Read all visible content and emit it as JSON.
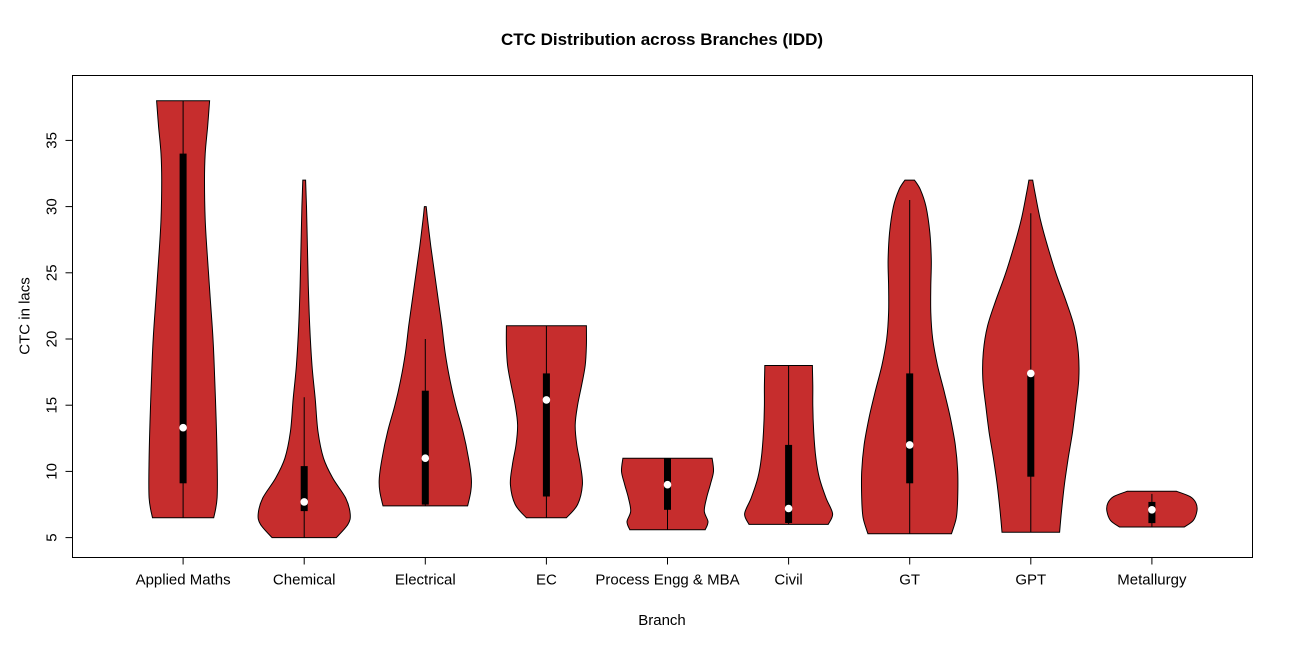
{
  "title": "CTC Distribution across Branches (IDD)",
  "y_axis_label": "CTC in lacs",
  "x_axis_label": "Branch",
  "colors": {
    "violin_fill": "#C62D2D",
    "violin_stroke": "#000000",
    "box": "#000000",
    "median_dot": "#FFFFFF",
    "axis": "#000000",
    "background": "#FFFFFF"
  },
  "chart_data": {
    "type": "violin",
    "title": "CTC Distribution across Branches (IDD)",
    "xlabel": "Branch",
    "ylabel": "CTC in lacs",
    "ylim": [
      3.5,
      39.9
    ],
    "y_ticks": [
      5,
      10,
      15,
      20,
      25,
      30,
      35
    ],
    "grid": false,
    "legend": "none",
    "categories": [
      "Applied Maths",
      "Chemical",
      "Electrical",
      "EC",
      "Process Engg & MBA",
      "Civil",
      "GT",
      "GPT",
      "Metallurgy"
    ],
    "series": [
      {
        "name": "Applied Maths",
        "range": [
          6.5,
          38
        ],
        "q1": 9.1,
        "q3": 34,
        "median": 13.3,
        "whisker_low": 6.5,
        "whisker_high": 38,
        "width_scale": 34,
        "density_profile": [
          [
            6.5,
            0.9
          ],
          [
            8,
            1.0
          ],
          [
            11,
            1.0
          ],
          [
            14,
            0.97
          ],
          [
            17,
            0.93
          ],
          [
            20,
            0.88
          ],
          [
            23,
            0.8
          ],
          [
            26,
            0.72
          ],
          [
            29,
            0.65
          ],
          [
            32,
            0.63
          ],
          [
            34,
            0.65
          ],
          [
            36,
            0.72
          ],
          [
            38,
            0.78
          ]
        ]
      },
      {
        "name": "Chemical",
        "range": [
          5,
          32
        ],
        "q1": 7.0,
        "q3": 10.4,
        "median": 7.7,
        "whisker_low": 5,
        "whisker_high": 15.6,
        "width_scale": 46,
        "density_profile": [
          [
            5,
            0.7
          ],
          [
            6,
            0.95
          ],
          [
            6.8,
            1.0
          ],
          [
            8,
            0.9
          ],
          [
            9.5,
            0.62
          ],
          [
            11,
            0.42
          ],
          [
            13,
            0.3
          ],
          [
            15.5,
            0.24
          ],
          [
            18,
            0.17
          ],
          [
            21,
            0.12
          ],
          [
            24,
            0.09
          ],
          [
            27,
            0.07
          ],
          [
            30,
            0.05
          ],
          [
            32,
            0.03
          ]
        ]
      },
      {
        "name": "Electrical",
        "range": [
          7.4,
          30
        ],
        "q1": 7.5,
        "q3": 16.1,
        "median": 11.0,
        "whisker_low": 7.4,
        "whisker_high": 20,
        "width_scale": 46,
        "density_profile": [
          [
            7.4,
            0.92
          ],
          [
            8.5,
            0.99
          ],
          [
            9.5,
            1.0
          ],
          [
            11,
            0.94
          ],
          [
            13,
            0.82
          ],
          [
            15,
            0.66
          ],
          [
            17,
            0.53
          ],
          [
            19,
            0.43
          ],
          [
            21,
            0.36
          ],
          [
            23,
            0.28
          ],
          [
            25,
            0.2
          ],
          [
            27,
            0.12
          ],
          [
            29,
            0.05
          ],
          [
            30,
            0.02
          ]
        ]
      },
      {
        "name": "EC",
        "range": [
          6.5,
          21
        ],
        "q1": 8.1,
        "q3": 17.4,
        "median": 15.4,
        "whisker_low": 6.5,
        "whisker_high": 21,
        "width_scale": 40,
        "density_profile": [
          [
            6.5,
            0.5
          ],
          [
            7.5,
            0.78
          ],
          [
            9,
            0.9
          ],
          [
            10.5,
            0.85
          ],
          [
            12,
            0.76
          ],
          [
            13.5,
            0.72
          ],
          [
            15,
            0.78
          ],
          [
            16.5,
            0.88
          ],
          [
            18,
            0.97
          ],
          [
            19.5,
            1.0
          ],
          [
            21,
            1.0
          ]
        ]
      },
      {
        "name": "Process Engg & MBA",
        "range": [
          5.6,
          11
        ],
        "q1": 7.1,
        "q3": 11.0,
        "median": 9.0,
        "whisker_low": 5.6,
        "whisker_high": 11,
        "width_scale": 46,
        "density_profile": [
          [
            5.6,
            0.82
          ],
          [
            6.2,
            0.88
          ],
          [
            7,
            0.8
          ],
          [
            8,
            0.85
          ],
          [
            9,
            0.93
          ],
          [
            10,
            1.0
          ],
          [
            11,
            0.97
          ]
        ]
      },
      {
        "name": "Civil",
        "range": [
          6,
          18
        ],
        "q1": 6.1,
        "q3": 12.0,
        "median": 7.2,
        "whisker_low": 6,
        "whisker_high": 18,
        "width_scale": 44,
        "density_profile": [
          [
            6,
            0.9
          ],
          [
            6.8,
            1.0
          ],
          [
            8,
            0.85
          ],
          [
            9.5,
            0.7
          ],
          [
            11,
            0.62
          ],
          [
            13,
            0.57
          ],
          [
            15,
            0.55
          ],
          [
            16.5,
            0.55
          ],
          [
            18,
            0.54
          ]
        ]
      },
      {
        "name": "GT",
        "range": [
          5.3,
          32
        ],
        "q1": 9.1,
        "q3": 17.4,
        "median": 12.0,
        "whisker_low": 5.3,
        "whisker_high": 30.5,
        "width_scale": 48,
        "density_profile": [
          [
            5.3,
            0.87
          ],
          [
            6.5,
            0.97
          ],
          [
            8,
            1.0
          ],
          [
            10,
            1.0
          ],
          [
            12,
            0.95
          ],
          [
            14,
            0.85
          ],
          [
            16,
            0.72
          ],
          [
            18,
            0.58
          ],
          [
            20,
            0.48
          ],
          [
            22,
            0.44
          ],
          [
            24,
            0.44
          ],
          [
            26,
            0.45
          ],
          [
            28,
            0.42
          ],
          [
            30,
            0.34
          ],
          [
            31.3,
            0.22
          ],
          [
            32,
            0.1
          ]
        ]
      },
      {
        "name": "GPT",
        "range": [
          5.4,
          32
        ],
        "q1": 9.6,
        "q3": 17.5,
        "median": 17.4,
        "whisker_low": 5.4,
        "whisker_high": 29.5,
        "width_scale": 48,
        "density_profile": [
          [
            5.4,
            0.6
          ],
          [
            7,
            0.64
          ],
          [
            9,
            0.7
          ],
          [
            11,
            0.78
          ],
          [
            13,
            0.87
          ],
          [
            15,
            0.94
          ],
          [
            17,
            1.0
          ],
          [
            19,
            0.99
          ],
          [
            21,
            0.9
          ],
          [
            23,
            0.72
          ],
          [
            25,
            0.52
          ],
          [
            27,
            0.35
          ],
          [
            29,
            0.2
          ],
          [
            31,
            0.09
          ],
          [
            32,
            0.04
          ]
        ]
      },
      {
        "name": "Metallurgy",
        "range": [
          5.8,
          8.5
        ],
        "q1": 6.1,
        "q3": 7.7,
        "median": 7.1,
        "whisker_low": 5.8,
        "whisker_high": 8.3,
        "width_scale": 45,
        "density_profile": [
          [
            5.8,
            0.72
          ],
          [
            6.3,
            0.92
          ],
          [
            7,
            1.0
          ],
          [
            7.6,
            0.98
          ],
          [
            8.1,
            0.85
          ],
          [
            8.5,
            0.55
          ]
        ]
      }
    ]
  }
}
